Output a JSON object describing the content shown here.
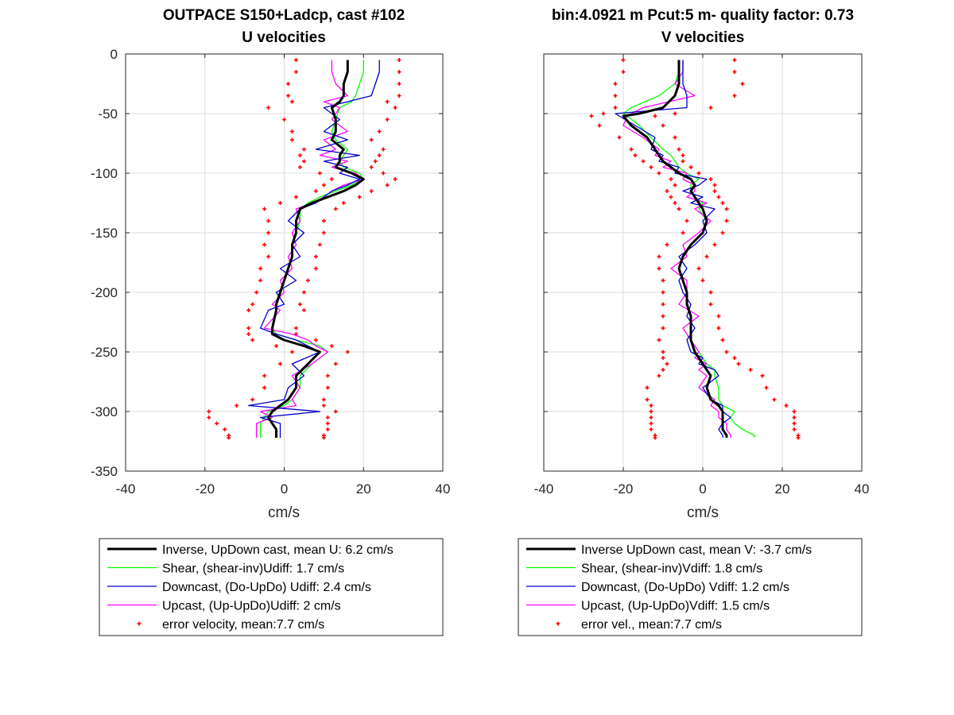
{
  "chart_data": [
    {
      "type": "line",
      "title_lines": [
        "OUTPACE S150+Ladcp, cast #102",
        "U velocities"
      ],
      "xlabel": "cm/s",
      "ylabel": "",
      "xlim": [
        -40,
        40
      ],
      "ylim": [
        -350,
        0
      ],
      "xticks": [
        "-40",
        "-20",
        "0",
        "20",
        "40"
      ],
      "yticks": [
        "0",
        "-50",
        "-100",
        "-150",
        "-200",
        "-250",
        "-300",
        "-350"
      ],
      "grid": true,
      "legend_position": "below",
      "series": [
        {
          "name": "Inverse, UpDown cast, mean U:  6.2 cm/s",
          "color": "#000000",
          "style": "thick",
          "x": [
            16,
            16,
            15,
            15,
            14,
            12,
            13,
            13,
            12,
            15,
            14,
            14,
            13,
            17,
            20,
            18,
            15,
            11,
            7,
            4,
            3,
            3,
            2,
            2,
            1,
            0,
            -1,
            -2,
            -2,
            -3,
            -3,
            0,
            5,
            9,
            6,
            3,
            3,
            1,
            -1,
            -3,
            -4,
            -3,
            -2,
            -2,
            -2
          ],
          "y": [
            -5,
            -15,
            -25,
            -35,
            -40,
            -45,
            -55,
            -65,
            -72,
            -80,
            -85,
            -90,
            -95,
            -100,
            -105,
            -110,
            -115,
            -120,
            -125,
            -130,
            -140,
            -150,
            -160,
            -170,
            -180,
            -190,
            -200,
            -210,
            -215,
            -230,
            -235,
            -240,
            -245,
            -250,
            -260,
            -270,
            -280,
            -290,
            -295,
            -300,
            -305,
            -310,
            -315,
            -320,
            -322
          ]
        },
        {
          "name": "Shear, (shear-inv)Udiff:  1.7 cm/s",
          "color": "#00ff00",
          "style": "thin",
          "x": [
            20,
            20,
            19,
            18,
            17,
            14,
            13,
            12,
            13,
            16,
            15,
            14,
            15,
            19,
            20,
            17,
            13,
            9,
            6,
            4,
            4,
            3,
            2,
            2,
            1,
            0,
            -1,
            -2,
            -2,
            -3,
            -2,
            3,
            9,
            11,
            7,
            4,
            4,
            2,
            0,
            -4,
            -5,
            -6,
            -6,
            -6,
            -6
          ],
          "y": [
            -5,
            -15,
            -25,
            -35,
            -40,
            -45,
            -55,
            -65,
            -72,
            -80,
            -85,
            -90,
            -95,
            -100,
            -105,
            -110,
            -115,
            -120,
            -125,
            -130,
            -140,
            -150,
            -160,
            -170,
            -180,
            -190,
            -200,
            -210,
            -215,
            -230,
            -235,
            -240,
            -245,
            -250,
            -260,
            -270,
            -280,
            -290,
            -295,
            -300,
            -305,
            -310,
            -315,
            -320,
            -322
          ]
        },
        {
          "name": "Downcast, (Do-UpDo) Udiff:  2.4 cm/s",
          "color": "#0000cc",
          "style": "thin",
          "x": [
            24,
            24,
            23,
            22,
            16,
            10,
            14,
            10,
            16,
            8,
            19,
            10,
            16,
            14,
            19,
            16,
            12,
            10,
            8,
            4,
            1,
            5,
            2,
            4,
            -1,
            3,
            -2,
            0,
            -4,
            -6,
            -2,
            3,
            6,
            9,
            2,
            5,
            1,
            0,
            -9,
            9,
            -6,
            -1,
            -1,
            -1,
            -1
          ],
          "y": [
            -5,
            -15,
            -25,
            -35,
            -40,
            -45,
            -55,
            -65,
            -72,
            -80,
            -85,
            -90,
            -95,
            -100,
            -105,
            -110,
            -115,
            -120,
            -125,
            -130,
            -140,
            -150,
            -160,
            -170,
            -180,
            -190,
            -200,
            -210,
            -215,
            -230,
            -235,
            -240,
            -245,
            -250,
            -260,
            -270,
            -280,
            -290,
            -295,
            -300,
            -305,
            -310,
            -315,
            -320,
            -322
          ]
        },
        {
          "name": "Upcast, (Up-UpDo)Udiff:  2 cm/s",
          "color": "#ff00ff",
          "style": "thin",
          "x": [
            12,
            12,
            13,
            16,
            10,
            14,
            12,
            16,
            10,
            13,
            9,
            16,
            12,
            18,
            20,
            15,
            12,
            10,
            7,
            3,
            4,
            2,
            3,
            1,
            2,
            -1,
            0,
            -3,
            -1,
            -5,
            2,
            6,
            8,
            11,
            7,
            2,
            4,
            2,
            3,
            -6,
            -3,
            -7,
            -7,
            -7,
            -7
          ],
          "y": [
            -5,
            -15,
            -25,
            -35,
            -40,
            -45,
            -55,
            -65,
            -72,
            -80,
            -85,
            -90,
            -95,
            -100,
            -105,
            -110,
            -115,
            -120,
            -125,
            -130,
            -140,
            -150,
            -160,
            -170,
            -180,
            -190,
            -200,
            -210,
            -215,
            -230,
            -235,
            -240,
            -245,
            -250,
            -260,
            -270,
            -280,
            -290,
            -295,
            -300,
            -305,
            -310,
            -315,
            -320,
            -322
          ]
        },
        {
          "name": "error velocity, mean:7.7 cm/s",
          "color": "#ff0000",
          "style": "markers",
          "mirror_of": 0,
          "offset": [
            13,
            13,
            14,
            14,
            12,
            16,
            13,
            11,
            10,
            10,
            10,
            9,
            9,
            8,
            8,
            8,
            7,
            8,
            8,
            9,
            7,
            7,
            7,
            6,
            7,
            6,
            6,
            6,
            7,
            6,
            6,
            8,
            7,
            7,
            7,
            8,
            8,
            9,
            11,
            16,
            15,
            14,
            13,
            12,
            12
          ]
        }
      ]
    },
    {
      "type": "line",
      "title_lines": [
        "bin:4.0921 m  Pcut:5 m- quality factor:  0.73",
        "V velocities"
      ],
      "xlabel": "cm/s",
      "ylabel": "",
      "xlim": [
        -40,
        40
      ],
      "ylim": [
        -350,
        0
      ],
      "xticks": [
        "-40",
        "-20",
        "0",
        "20",
        "40"
      ],
      "yticks": [],
      "grid": true,
      "legend_position": "below",
      "series": [
        {
          "name": "Inverse UpDown cast, mean V:  -3.7 cm/s",
          "color": "#000000",
          "style": "thick",
          "x": [
            -6,
            -6,
            -6,
            -7,
            -10,
            -16,
            -20,
            -18,
            -14,
            -12,
            -11,
            -10,
            -8,
            -6,
            -3,
            -2,
            -3,
            -2,
            -1,
            0,
            1,
            0,
            -3,
            -5,
            -6,
            -5,
            -4,
            -4,
            -3,
            -3,
            -3,
            -2,
            -1,
            0,
            1,
            2,
            1,
            2,
            4,
            5,
            5,
            5,
            5,
            6,
            6
          ],
          "y": [
            -5,
            -15,
            -25,
            -35,
            -45,
            -50,
            -52,
            -60,
            -70,
            -80,
            -85,
            -90,
            -95,
            -100,
            -105,
            -110,
            -115,
            -120,
            -125,
            -130,
            -140,
            -150,
            -160,
            -170,
            -180,
            -190,
            -200,
            -210,
            -220,
            -230,
            -240,
            -250,
            -255,
            -260,
            -265,
            -270,
            -280,
            -290,
            -295,
            -300,
            -305,
            -310,
            -315,
            -320,
            -322
          ]
        },
        {
          "name": "Shear, (shear-inv)Vdiff:  1.8 cm/s",
          "color": "#00ff00",
          "style": "thin",
          "x": [
            -6,
            -6,
            -7,
            -11,
            -18,
            -20,
            -19,
            -16,
            -13,
            -10,
            -8,
            -7,
            -6,
            -4,
            -1,
            -3,
            -3,
            -2,
            0,
            -1,
            1,
            0,
            -3,
            -5,
            -6,
            -5,
            -4,
            -4,
            -3,
            -3,
            -3,
            -1,
            0,
            1,
            3,
            3,
            4,
            4,
            5,
            8,
            7,
            8,
            10,
            13,
            13
          ],
          "y": [
            -5,
            -15,
            -25,
            -35,
            -45,
            -50,
            -52,
            -60,
            -70,
            -80,
            -85,
            -90,
            -95,
            -100,
            -105,
            -110,
            -115,
            -120,
            -125,
            -130,
            -140,
            -150,
            -160,
            -170,
            -180,
            -190,
            -200,
            -210,
            -220,
            -230,
            -240,
            -250,
            -255,
            -260,
            -265,
            -270,
            -280,
            -290,
            -295,
            -300,
            -305,
            -310,
            -315,
            -320,
            -322
          ]
        },
        {
          "name": "Downcast, (Do-UpDo) Vdiff:  1.2 cm/s",
          "color": "#0000cc",
          "style": "thin",
          "x": [
            -5,
            -5,
            -5,
            -4,
            -4,
            -22,
            -21,
            -17,
            -12,
            -13,
            -10,
            -11,
            -6,
            -7,
            1,
            -1,
            -5,
            0,
            -3,
            3,
            0,
            1,
            -2,
            -6,
            -4,
            -6,
            -5,
            -3,
            -4,
            -2,
            -4,
            -3,
            0,
            -1,
            3,
            4,
            0,
            2,
            5,
            5,
            7,
            5,
            4,
            5,
            5
          ],
          "y": [
            -5,
            -15,
            -25,
            -35,
            -45,
            -50,
            -52,
            -60,
            -70,
            -80,
            -85,
            -90,
            -95,
            -100,
            -105,
            -110,
            -115,
            -120,
            -125,
            -130,
            -140,
            -150,
            -160,
            -170,
            -180,
            -190,
            -200,
            -210,
            -220,
            -230,
            -240,
            -250,
            -255,
            -260,
            -265,
            -270,
            -280,
            -290,
            -295,
            -300,
            -305,
            -310,
            -315,
            -320,
            -322
          ]
        },
        {
          "name": "Upcast, (Up-UpDo)Vdiff:  1.5 cm/s",
          "color": "#ff00ff",
          "style": "thin",
          "x": [
            -5,
            -5,
            -7,
            -2,
            -15,
            -18,
            -19,
            -20,
            -15,
            -11,
            -12,
            -8,
            -10,
            -4,
            -5,
            -2,
            -2,
            -4,
            1,
            -2,
            2,
            -1,
            -5,
            -4,
            -8,
            -4,
            -4,
            -6,
            -1,
            -5,
            -3,
            -1,
            -2,
            1,
            -1,
            1,
            -1,
            3,
            2,
            4,
            4,
            6,
            6,
            7,
            7
          ],
          "y": [
            -5,
            -15,
            -25,
            -35,
            -45,
            -50,
            -52,
            -60,
            -70,
            -80,
            -85,
            -90,
            -95,
            -100,
            -105,
            -110,
            -115,
            -120,
            -125,
            -130,
            -140,
            -150,
            -160,
            -170,
            -180,
            -190,
            -200,
            -210,
            -220,
            -230,
            -240,
            -250,
            -255,
            -260,
            -265,
            -270,
            -280,
            -290,
            -295,
            -300,
            -305,
            -310,
            -315,
            -320,
            -322
          ]
        },
        {
          "name": "error vel., mean:7.7 cm/s",
          "color": "#ff0000",
          "style": "markers",
          "mirror_of": 0,
          "offset": [
            14,
            14,
            16,
            15,
            12,
            9,
            8,
            8,
            7,
            6,
            6,
            5,
            5,
            5,
            5,
            5,
            6,
            6,
            6,
            6,
            5,
            5,
            6,
            6,
            5,
            5,
            6,
            6,
            7,
            7,
            8,
            8,
            9,
            9,
            11,
            13,
            15,
            16,
            17,
            18,
            18,
            18,
            18,
            18,
            18
          ]
        }
      ]
    }
  ],
  "legends": [
    {
      "items": [
        "Inverse, UpDown cast, mean U:  6.2 cm/s",
        "Shear, (shear-inv)Udiff:  1.7 cm/s",
        "Downcast, (Do-UpDo) Udiff:  2.4 cm/s",
        "Upcast, (Up-UpDo)Udiff:  2 cm/s",
        "error velocity, mean:7.7 cm/s"
      ]
    },
    {
      "items": [
        "Inverse UpDown cast, mean V:  -3.7 cm/s",
        "Shear, (shear-inv)Vdiff:  1.8 cm/s",
        "Downcast, (Do-UpDo) Vdiff:  1.2 cm/s",
        "Upcast, (Up-UpDo)Vdiff:  1.5 cm/s",
        "error vel., mean:7.7 cm/s"
      ]
    }
  ]
}
